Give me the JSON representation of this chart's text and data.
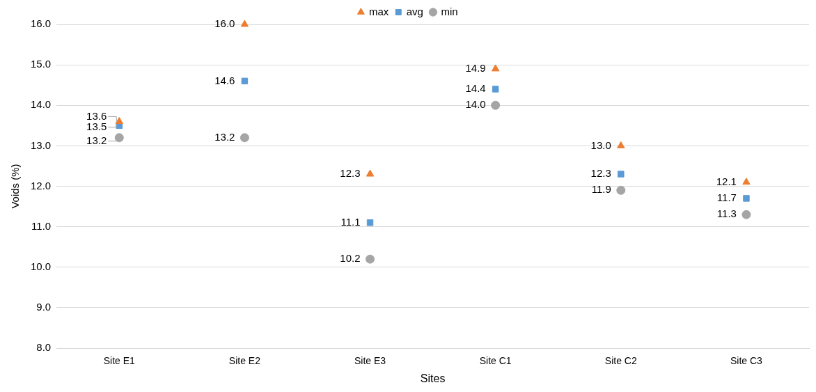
{
  "chart_data": {
    "type": "scatter",
    "xlabel": "Sites",
    "ylabel": "Voids (%)",
    "categories": [
      "Site E1",
      "Site E2",
      "Site E3",
      "Site C1",
      "Site C2",
      "Site C3"
    ],
    "series": [
      {
        "name": "max",
        "color": "#ed7d31",
        "marker": "triangle",
        "values": [
          13.6,
          16.0,
          12.3,
          14.9,
          13.0,
          12.1
        ],
        "value_labels": [
          "13.6",
          "16.0",
          "12.3",
          "14.9",
          "13.0",
          "12.1"
        ]
      },
      {
        "name": "avg",
        "color": "#5b9bd5",
        "marker": "square",
        "values": [
          13.5,
          14.6,
          11.1,
          14.4,
          12.3,
          11.7
        ],
        "value_labels": [
          "13.5",
          "14.6",
          "11.1",
          "14.4",
          "12.3",
          "11.7"
        ]
      },
      {
        "name": "min",
        "color": "#a5a5a5",
        "marker": "circle",
        "values": [
          13.2,
          13.2,
          10.2,
          14.0,
          11.9,
          11.3
        ],
        "value_labels": [
          "13.2",
          "13.2",
          "10.2",
          "14.0",
          "11.9",
          "11.3"
        ]
      }
    ],
    "ylim": [
      8,
      16
    ],
    "yticks": [
      {
        "value": 8,
        "label": "8.0"
      },
      {
        "value": 9,
        "label": "9.0"
      },
      {
        "value": 10,
        "label": "10.0"
      },
      {
        "value": 11,
        "label": "11.0"
      },
      {
        "value": 12,
        "label": "12.0"
      },
      {
        "value": 13,
        "label": "13.0"
      },
      {
        "value": 14,
        "label": "14.0"
      },
      {
        "value": 15,
        "label": "15.0"
      },
      {
        "value": 16,
        "label": "16.0"
      }
    ],
    "grid": "y",
    "legend": "top"
  }
}
